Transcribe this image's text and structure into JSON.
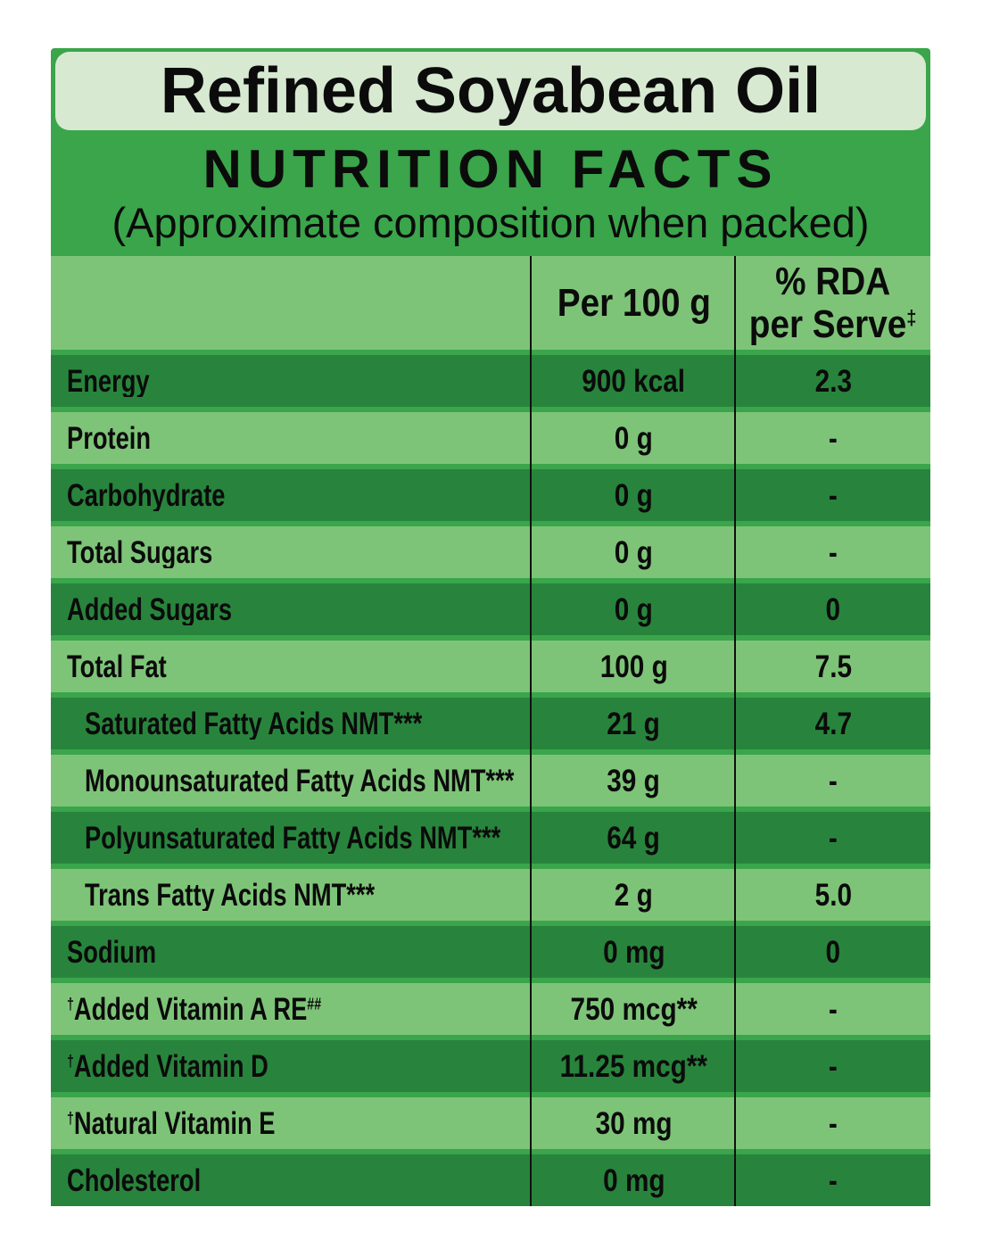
{
  "header": {
    "product_title": "Refined Soyabean Oil"
  },
  "section": {
    "title": "NUTRITION FACTS",
    "subtitle": "(Approximate composition when packed)"
  },
  "columns": {
    "per100_label": "Per 100 g",
    "rda_line1": "% RDA",
    "rda_line2": "per Serve",
    "rda_sup": "‡"
  },
  "colors": {
    "background_green": "#3aa54a",
    "dark_row_green": "#28843c",
    "light_row_green": "#7ec478",
    "title_box_green": "#d7e9d1",
    "text_black": "#0b0b0b"
  },
  "rows": [
    {
      "sup_prefix": "",
      "label": "Energy",
      "sup_suffix": "",
      "per100": "900 kcal",
      "rda": "2.3",
      "indent": false,
      "shade": "dark"
    },
    {
      "sup_prefix": "",
      "label": "Protein",
      "sup_suffix": "",
      "per100": "0 g",
      "rda": "-",
      "indent": false,
      "shade": "light"
    },
    {
      "sup_prefix": "",
      "label": "Carbohydrate",
      "sup_suffix": "",
      "per100": "0 g",
      "rda": "-",
      "indent": false,
      "shade": "dark"
    },
    {
      "sup_prefix": "",
      "label": "Total Sugars",
      "sup_suffix": "",
      "per100": "0 g",
      "rda": "-",
      "indent": false,
      "shade": "light"
    },
    {
      "sup_prefix": "",
      "label": "Added Sugars",
      "sup_suffix": "",
      "per100": "0 g",
      "rda": "0",
      "indent": false,
      "shade": "dark"
    },
    {
      "sup_prefix": "",
      "label": "Total Fat",
      "sup_suffix": "",
      "per100": "100 g",
      "rda": "7.5",
      "indent": false,
      "shade": "light"
    },
    {
      "sup_prefix": "",
      "label": "Saturated Fatty Acids NMT***",
      "sup_suffix": "",
      "per100": "21 g",
      "rda": "4.7",
      "indent": true,
      "shade": "dark"
    },
    {
      "sup_prefix": "",
      "label": "Monounsaturated Fatty Acids NMT***",
      "sup_suffix": "",
      "per100": "39 g",
      "rda": "-",
      "indent": true,
      "shade": "light"
    },
    {
      "sup_prefix": "",
      "label": "Polyunsaturated Fatty Acids NMT***",
      "sup_suffix": "",
      "per100": "64 g",
      "rda": "-",
      "indent": true,
      "shade": "dark"
    },
    {
      "sup_prefix": "",
      "label": "Trans Fatty Acids NMT***",
      "sup_suffix": "",
      "per100": "2 g",
      "rda": "5.0",
      "indent": true,
      "shade": "light"
    },
    {
      "sup_prefix": "",
      "label": "Sodium",
      "sup_suffix": "",
      "per100": "0 mg",
      "rda": "0",
      "indent": false,
      "shade": "dark"
    },
    {
      "sup_prefix": "†",
      "label": "Added Vitamin A RE",
      "sup_suffix": "##",
      "per100": "750 mcg**",
      "rda": "-",
      "indent": false,
      "shade": "light"
    },
    {
      "sup_prefix": "†",
      "label": "Added Vitamin D",
      "sup_suffix": "",
      "per100": "11.25 mcg**",
      "rda": "-",
      "indent": false,
      "shade": "dark"
    },
    {
      "sup_prefix": "†",
      "label": "Natural Vitamin E",
      "sup_suffix": "",
      "per100": "30 mg",
      "rda": "-",
      "indent": false,
      "shade": "light"
    },
    {
      "sup_prefix": "",
      "label": "Cholesterol",
      "sup_suffix": "",
      "per100": "0 mg",
      "rda": "-",
      "indent": false,
      "shade": "dark"
    }
  ]
}
